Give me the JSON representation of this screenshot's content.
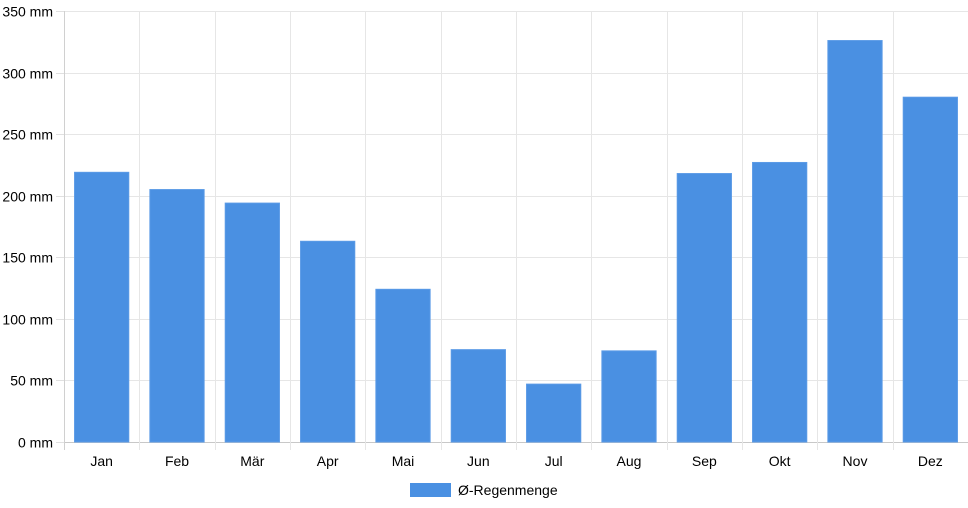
{
  "chart_data": {
    "type": "bar",
    "categories": [
      "Jan",
      "Feb",
      "Mär",
      "Apr",
      "Mai",
      "Jun",
      "Jul",
      "Aug",
      "Sep",
      "Okt",
      "Nov",
      "Dez"
    ],
    "series": [
      {
        "name": "Ø-Regenmenge",
        "color": "#4a90e2",
        "values": [
          219,
          205,
          194,
          163,
          124,
          75,
          47,
          74,
          218,
          227,
          326,
          280
        ]
      }
    ],
    "y_ticks": [
      "0 mm",
      "50 mm",
      "100 mm",
      "150 mm",
      "200 mm",
      "250 mm",
      "300 mm",
      "350 mm"
    ],
    "ylim": [
      0,
      350
    ],
    "grid": true,
    "legend_position": "bottom-center"
  }
}
